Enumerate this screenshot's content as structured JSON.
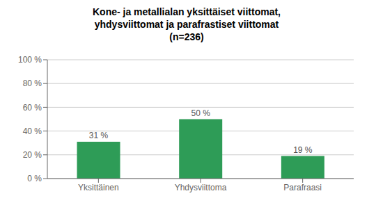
{
  "chart_data": {
    "type": "bar",
    "title": "Kone- ja metallialan yksittäiset viittomat,\nyhdysviittomat ja parafrastiset viittomat\n(n=236)",
    "categories": [
      "Yksittäinen",
      "Yhdysviittoma",
      "Parafraasi"
    ],
    "values": [
      31,
      50,
      19
    ],
    "value_labels": [
      "31 %",
      "50 %",
      "19 %"
    ],
    "data_labels": true,
    "color": "#2e9c57",
    "ylim": [
      0,
      100
    ],
    "yticks": [
      {
        "value": 0,
        "label": "0 %"
      },
      {
        "value": 20,
        "label": "20 %"
      },
      {
        "value": 40,
        "label": "40 %"
      },
      {
        "value": 60,
        "label": "60 %"
      },
      {
        "value": 80,
        "label": "80 %"
      },
      {
        "value": 100,
        "label": "100 %"
      }
    ],
    "grid": true
  }
}
